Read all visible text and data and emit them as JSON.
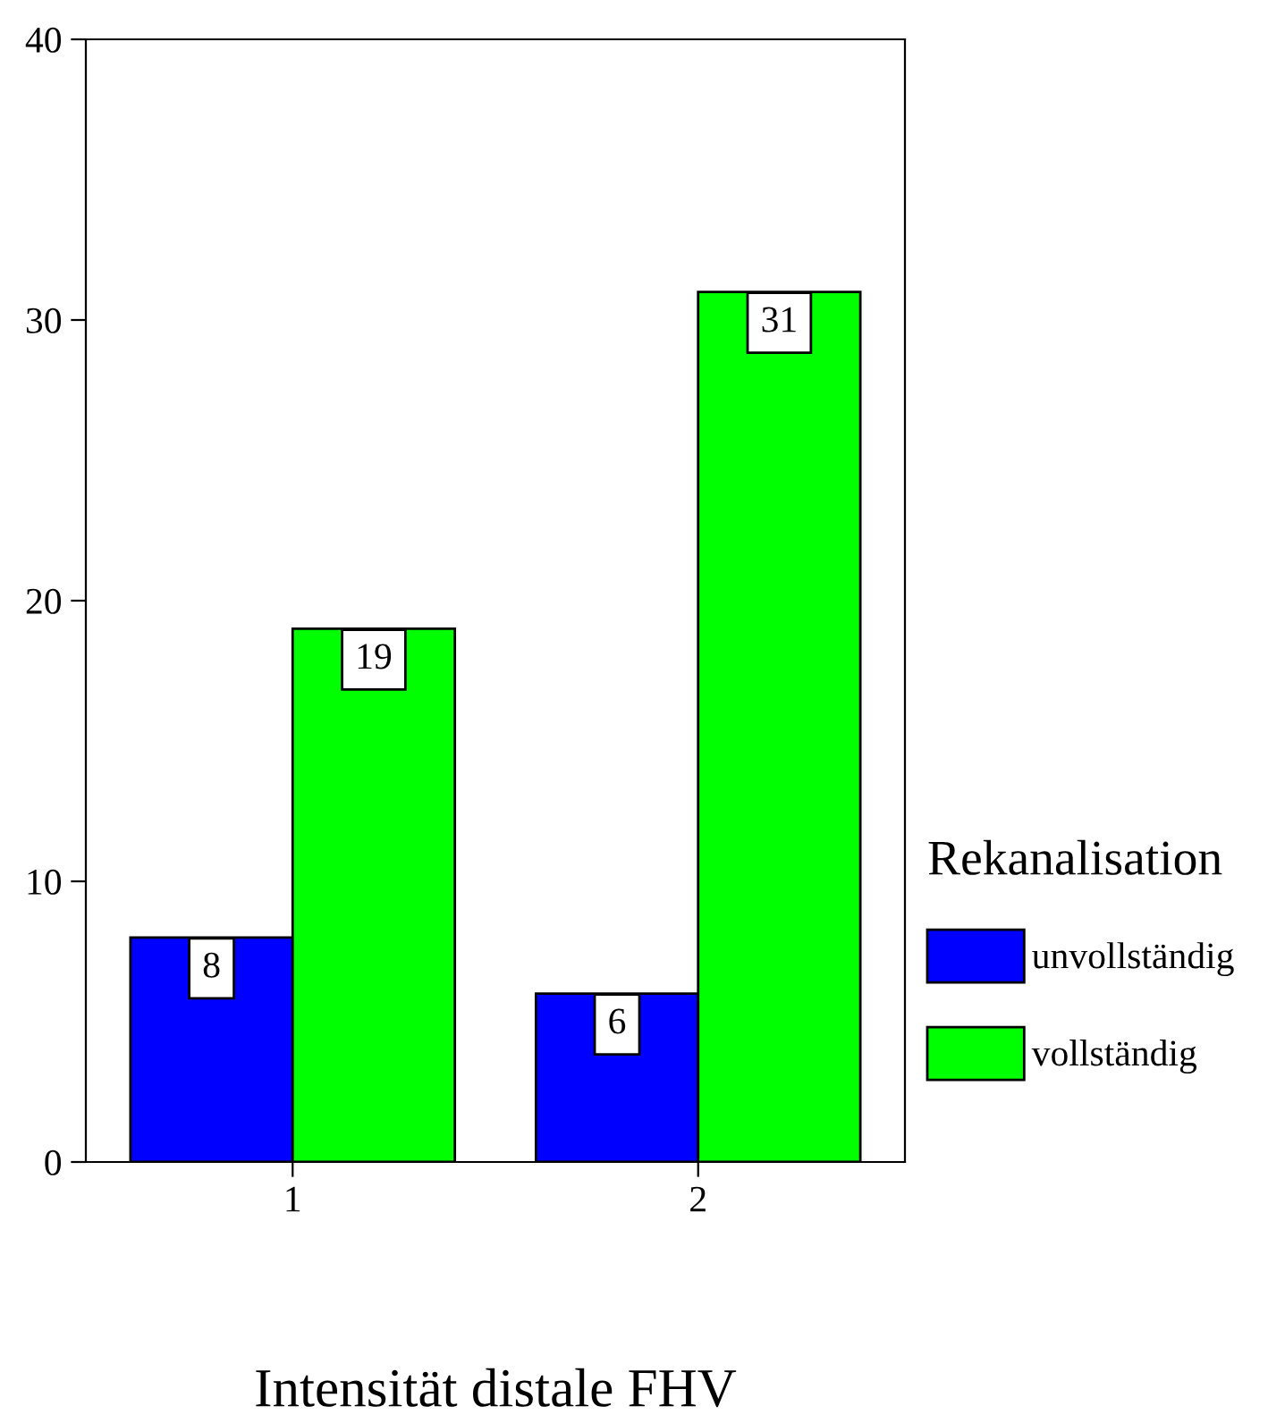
{
  "chart_data": {
    "type": "bar",
    "xlabel": "Intensität distale FHV",
    "legend_title": "Rekanalisation",
    "categories": [
      "1",
      "2"
    ],
    "series": [
      {
        "name": "unvollständig",
        "color": "#0000ff",
        "values": [
          8,
          6
        ]
      },
      {
        "name": "vollständig",
        "color": "#00ff00",
        "values": [
          19,
          31
        ]
      }
    ],
    "ylim": [
      0,
      40
    ],
    "yticks": [
      0,
      10,
      20,
      30,
      40
    ],
    "grid": false,
    "legend": "right",
    "data_labels": true
  }
}
